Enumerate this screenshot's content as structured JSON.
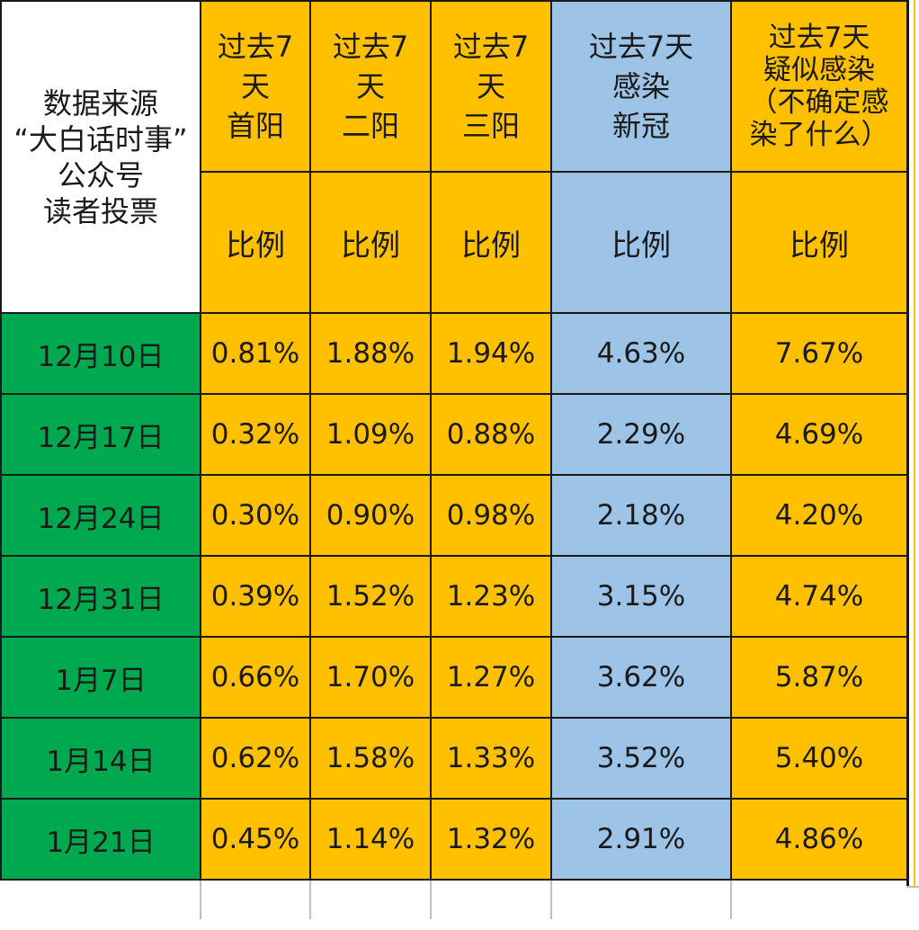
{
  "header": {
    "source": [
      "数据来源",
      "“大白话时事”",
      "公众号",
      "读者投票"
    ],
    "columns": [
      {
        "lines": [
          "过去7",
          "天",
          "首阳"
        ],
        "sub": "比例",
        "color": "#FFC000"
      },
      {
        "lines": [
          "过去7",
          "天",
          "二阳"
        ],
        "sub": "比例",
        "color": "#FFC000"
      },
      {
        "lines": [
          "过去7",
          "天",
          "三阳"
        ],
        "sub": "比例",
        "color": "#FFC000"
      },
      {
        "lines": [
          "过去7天",
          "感染",
          "新冠"
        ],
        "sub": "比例",
        "color": "#9DC3E6"
      },
      {
        "lines": [
          "过去7天",
          "疑似感染",
          "（不确定感",
          "染了什么）"
        ],
        "sub": "比例",
        "color": "#FFC000"
      }
    ]
  },
  "rows": [
    {
      "date": "12月10日",
      "values": [
        "0.81%",
        "1.88%",
        "1.94%",
        "4.63%",
        "7.67%"
      ]
    },
    {
      "date": "12月17日",
      "values": [
        "0.32%",
        "1.09%",
        "0.88%",
        "2.29%",
        "4.69%"
      ]
    },
    {
      "date": "12月24日",
      "values": [
        "0.30%",
        "0.90%",
        "0.98%",
        "2.18%",
        "4.20%"
      ]
    },
    {
      "date": "12月31日",
      "values": [
        "0.39%",
        "1.52%",
        "1.23%",
        "3.15%",
        "4.74%"
      ]
    },
    {
      "date": "1月7日",
      "values": [
        "0.66%",
        "1.70%",
        "1.27%",
        "3.62%",
        "5.87%"
      ]
    },
    {
      "date": "1月14日",
      "values": [
        "0.62%",
        "1.58%",
        "1.33%",
        "3.52%",
        "5.40%"
      ]
    },
    {
      "date": "1月21日",
      "values": [
        "0.45%",
        "1.14%",
        "1.32%",
        "2.91%",
        "4.86%"
      ]
    }
  ],
  "colors": {
    "yellow": "#FFC000",
    "blue": "#9DC3E6",
    "green": "#00A94F"
  },
  "chart_data": {
    "type": "table",
    "columns": [
      "过去7天首阳 比例",
      "过去7天二阳 比例",
      "过去7天三阳 比例",
      "过去7天感染新冠 比例",
      "过去7天疑似感染（不确定感染了什么） 比例"
    ],
    "categories": [
      "12月10日",
      "12月17日",
      "12月24日",
      "12月31日",
      "1月7日",
      "1月14日",
      "1月21日"
    ],
    "series": [
      {
        "name": "过去7天首阳",
        "values": [
          0.81,
          0.32,
          0.3,
          0.39,
          0.66,
          0.62,
          0.45
        ]
      },
      {
        "name": "过去7天二阳",
        "values": [
          1.88,
          1.09,
          0.9,
          1.52,
          1.7,
          1.58,
          1.14
        ]
      },
      {
        "name": "过去7天三阳",
        "values": [
          1.94,
          0.88,
          0.98,
          1.23,
          1.27,
          1.33,
          1.32
        ]
      },
      {
        "name": "过去7天感染新冠",
        "values": [
          4.63,
          2.29,
          2.18,
          3.15,
          3.62,
          3.52,
          2.91
        ]
      },
      {
        "name": "过去7天疑似感染",
        "values": [
          7.67,
          4.69,
          4.2,
          4.74,
          5.87,
          5.4,
          4.86
        ]
      }
    ],
    "unit": "%"
  }
}
